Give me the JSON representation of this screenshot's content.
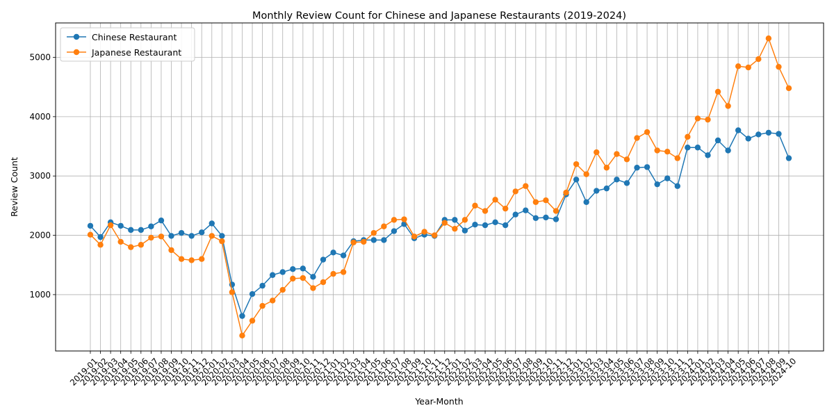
{
  "chart_data": {
    "type": "line",
    "title": "Monthly Review Count for Chinese and Japanese Restaurants (2019-2024)",
    "xlabel": "Year-Month",
    "ylabel": "Review Count",
    "yticks": [
      1000,
      2000,
      3000,
      4000,
      5000
    ],
    "ylim": [
      50,
      5580
    ],
    "grid": true,
    "legend_position": "upper-left",
    "categories": [
      "2019-01",
      "2019-02",
      "2019-03",
      "2019-04",
      "2019-05",
      "2019-06",
      "2019-07",
      "2019-08",
      "2019-09",
      "2019-10",
      "2019-11",
      "2019-12",
      "2020-01",
      "2020-02",
      "2020-03",
      "2020-04",
      "2020-05",
      "2020-06",
      "2020-07",
      "2020-08",
      "2020-09",
      "2020-10",
      "2020-11",
      "2020-12",
      "2021-01",
      "2021-02",
      "2021-03",
      "2021-04",
      "2021-05",
      "2021-06",
      "2021-07",
      "2021-08",
      "2021-09",
      "2021-10",
      "2021-11",
      "2021-12",
      "2022-01",
      "2022-02",
      "2022-03",
      "2022-04",
      "2022-05",
      "2022-06",
      "2022-07",
      "2022-08",
      "2022-09",
      "2022-10",
      "2022-11",
      "2022-12",
      "2023-01",
      "2023-02",
      "2023-03",
      "2023-04",
      "2023-05",
      "2023-06",
      "2023-07",
      "2023-08",
      "2023-09",
      "2023-10",
      "2023-11",
      "2023-12",
      "2024-01",
      "2024-02",
      "2024-03",
      "2024-04",
      "2024-05",
      "2024-06",
      "2024-07",
      "2024-08",
      "2024-09",
      "2024-10"
    ],
    "series": [
      {
        "name": "Chinese Restaurant",
        "color": "#1f77b4",
        "values": [
          2160,
          1970,
          2220,
          2160,
          2090,
          2090,
          2150,
          2250,
          1990,
          2040,
          1990,
          2050,
          2200,
          1990,
          1170,
          640,
          1010,
          1150,
          1330,
          1380,
          1430,
          1440,
          1300,
          1590,
          1710,
          1660,
          1900,
          1920,
          1920,
          1920,
          2070,
          2190,
          1950,
          2010,
          1990,
          2260,
          2260,
          2080,
          2180,
          2170,
          2220,
          2170,
          2350,
          2420,
          2290,
          2300,
          2270,
          2690,
          2940,
          2560,
          2750,
          2790,
          2940,
          2880,
          3140,
          3150,
          2860,
          2960,
          2830,
          3480,
          3480,
          3350,
          3600,
          3430,
          3770,
          3630,
          3700,
          3730,
          3710,
          3300
        ]
      },
      {
        "name": "Japanese Restaurant",
        "color": "#ff7f0e",
        "values": [
          2010,
          1840,
          2170,
          1890,
          1800,
          1840,
          1960,
          1980,
          1750,
          1600,
          1580,
          1600,
          1990,
          1900,
          1040,
          310,
          560,
          810,
          900,
          1080,
          1270,
          1280,
          1110,
          1210,
          1350,
          1380,
          1880,
          1890,
          2040,
          2150,
          2260,
          2270,
          1980,
          2060,
          2000,
          2210,
          2110,
          2260,
          2500,
          2410,
          2600,
          2450,
          2740,
          2830,
          2560,
          2590,
          2410,
          2720,
          3200,
          3030,
          3400,
          3140,
          3370,
          3280,
          3640,
          3740,
          3430,
          3410,
          3300,
          3660,
          3970,
          3950,
          4420,
          4180,
          4850,
          4830,
          4970,
          5320,
          4840,
          4480
        ]
      }
    ]
  }
}
